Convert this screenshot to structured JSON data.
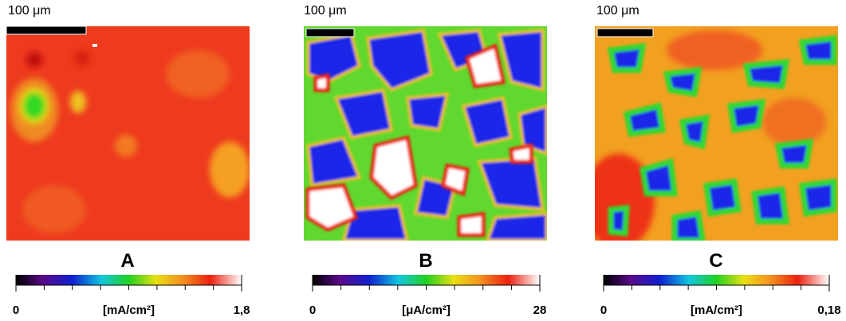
{
  "panels": [
    {
      "label": "A",
      "scale_bar": "100 μm",
      "colorbar": {
        "min": "0",
        "unit": "[mA/cm²]",
        "max": "1,8"
      }
    },
    {
      "label": "B",
      "scale_bar": "100 μm",
      "colorbar": {
        "min": "0",
        "unit": "[μA/cm²]",
        "max": "28"
      }
    },
    {
      "label": "C",
      "scale_bar": "100 μm",
      "colorbar": {
        "min": "0",
        "unit": "[mA/cm²]",
        "max": "0,18"
      }
    }
  ]
}
